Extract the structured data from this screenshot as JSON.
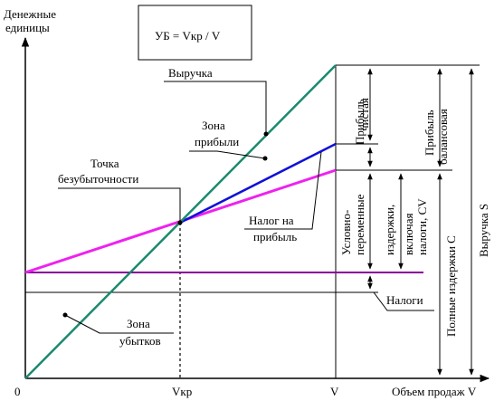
{
  "formula": "УБ = Vкр / V",
  "axes": {
    "y_label_lines": [
      "Денежные",
      "единицы"
    ],
    "x_label": "Объем продаж V",
    "origin": "0",
    "x_tick_vkr": "Vкр",
    "x_tick_v": "V"
  },
  "annotations": {
    "revenue": "Выручка",
    "profit_zone": [
      "Зона",
      "прибыли"
    ],
    "breakeven": [
      "Точка",
      "безубыточности"
    ],
    "tax_on_profit": [
      "Налог на",
      "прибыль"
    ],
    "taxes": "Налоги",
    "loss_zone": [
      "Зона",
      "убытков"
    ]
  },
  "vertical_labels": {
    "net_profit": [
      "Прибыль",
      "чистая"
    ],
    "balance_profit": [
      "Прибыль",
      "балансовая"
    ],
    "revenue_s": "Выручка S",
    "full_costs": "Полные издержки  C",
    "semi_variable": [
      "Условно-",
      "переменные",
      "издержки,",
      "включая",
      "налоги, CV"
    ]
  },
  "colors": {
    "revenue_line": "#1a8a6e",
    "profit_line": "#1010d8",
    "cost_line": "#ee22ee",
    "fixed_line": "#880099",
    "ink": "#000000"
  }
}
